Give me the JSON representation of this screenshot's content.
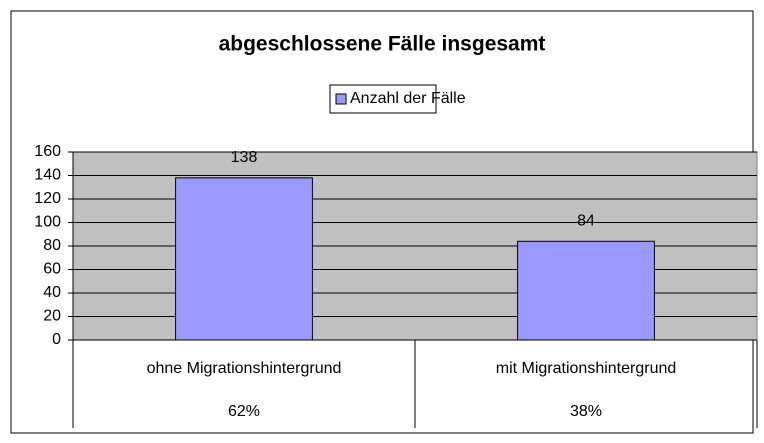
{
  "chart_data": {
    "type": "bar",
    "title": "abgeschlossene Fälle insgesamt",
    "categories": [
      "ohne Migrationshintergrund",
      "mit Migrationshintergrund"
    ],
    "series": [
      {
        "name": "Anzahl der Fälle",
        "color": "#9999ff",
        "values": [
          138,
          84
        ]
      }
    ],
    "shares": [
      62,
      38
    ],
    "share_labels": [
      "62%",
      "38%"
    ],
    "ylim": [
      0,
      160
    ],
    "yticks": [
      0,
      20,
      40,
      60,
      80,
      100,
      120,
      140,
      160
    ],
    "grid": true,
    "legend": "top"
  }
}
